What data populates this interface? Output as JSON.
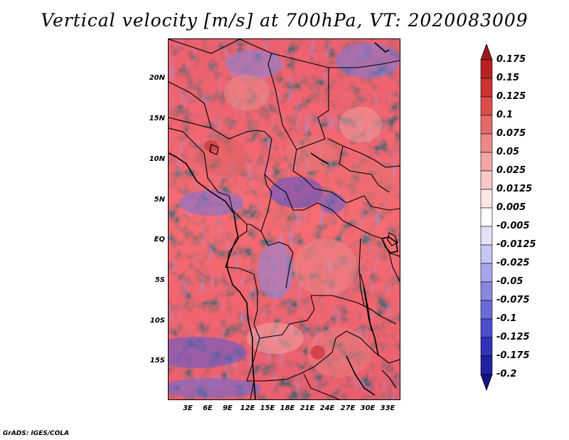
{
  "title": "Vertical velocity [m/s] at 700hPa, VT: 2020083009",
  "credit": "GrADS: IGES/COLA",
  "map": {
    "lat_range": [
      -20,
      24
    ],
    "lon_range": [
      0,
      35
    ],
    "lat_labels": [
      "20N",
      "15N",
      "10N",
      "5N",
      "EQ",
      "5S",
      "10S",
      "15S"
    ],
    "lon_labels": [
      "3E",
      "6E",
      "9E",
      "12E",
      "15E",
      "18E",
      "21E",
      "24E",
      "27E",
      "30E",
      "33E"
    ]
  },
  "colorbar": {
    "labels": [
      "0.175",
      "0.15",
      "0.125",
      "0.1",
      "0.075",
      "0.05",
      "0.025",
      "0.0125",
      "0.005",
      "-0.005",
      "-0.0125",
      "-0.025",
      "-0.05",
      "-0.075",
      "-0.1",
      "-0.125",
      "-0.175",
      "-0.2"
    ],
    "colors": [
      "#a01818",
      "#b82222",
      "#cc3333",
      "#dc4c4c",
      "#e46a6a",
      "#ec8888",
      "#f2a6a6",
      "#f8c8c8",
      "#fce6e6",
      "#ffffff",
      "#e2e2fa",
      "#c6c6f2",
      "#a6a6ec",
      "#8888e2",
      "#6a6ad8",
      "#4c4ccc",
      "#3232b8",
      "#2020a0",
      "#141488"
    ]
  }
}
